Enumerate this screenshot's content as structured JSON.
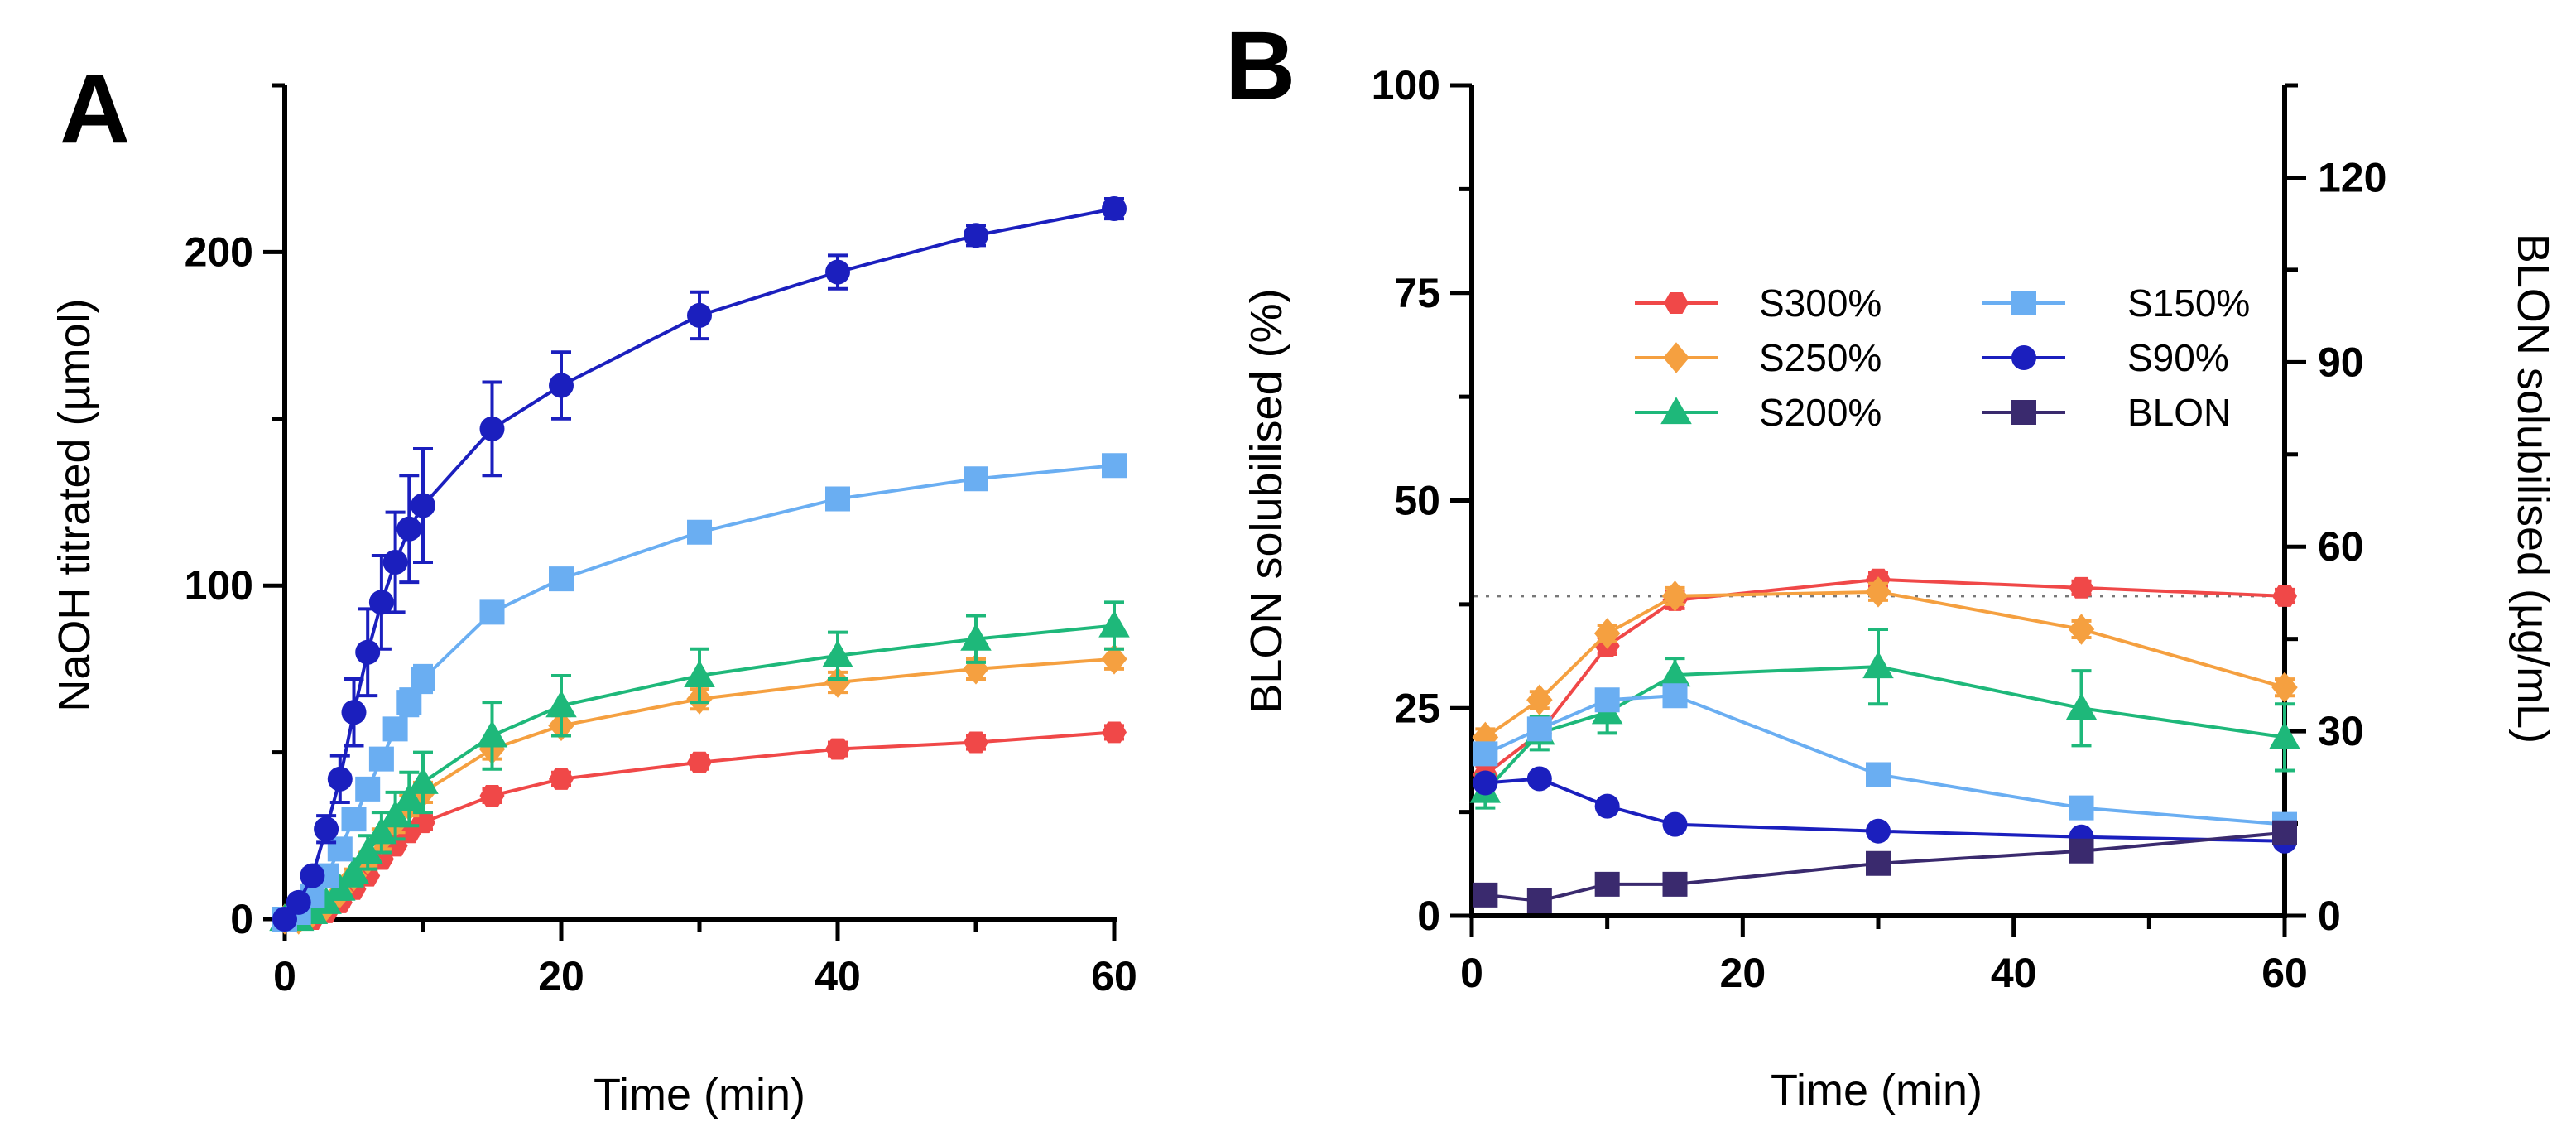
{
  "chart_data": [
    {
      "panel": "A",
      "type": "line",
      "xlabel": "Time (min)",
      "ylabel": "NaOH titrated (µmol)",
      "xlim": [
        0,
        60
      ],
      "ylim": [
        0,
        250
      ],
      "xticks": [
        0,
        20,
        40,
        60
      ],
      "yticks": [
        0,
        100,
        200
      ],
      "series": [
        {
          "name": "S300%",
          "color": "#F04848",
          "marker": "hexagon",
          "x": [
            0,
            1,
            2,
            3,
            4,
            5,
            6,
            7,
            8,
            9,
            10,
            15,
            20,
            30,
            40,
            50,
            60
          ],
          "y": [
            0,
            0,
            0,
            2,
            5,
            9,
            13,
            18,
            22,
            26,
            29,
            37,
            42,
            47,
            51,
            53,
            56
          ],
          "err": [
            0,
            0,
            0,
            1,
            1,
            1,
            1,
            1,
            1,
            1,
            2,
            2,
            2,
            2,
            2,
            2,
            2
          ]
        },
        {
          "name": "S250%",
          "color": "#F5A040",
          "marker": "diamond",
          "x": [
            0,
            1,
            2,
            3,
            4,
            5,
            6,
            7,
            8,
            9,
            10,
            15,
            20,
            30,
            40,
            50,
            60
          ],
          "y": [
            0,
            0,
            2,
            4,
            8,
            13,
            18,
            24,
            29,
            34,
            38,
            51,
            58,
            66,
            71,
            75,
            78
          ],
          "err": [
            0,
            0,
            1,
            1,
            2,
            2,
            2,
            3,
            3,
            3,
            3,
            3,
            3,
            3,
            3,
            3,
            3
          ]
        },
        {
          "name": "S200%",
          "color": "#1EB87A",
          "marker": "triangle",
          "x": [
            0,
            1,
            2,
            3,
            4,
            5,
            6,
            7,
            8,
            9,
            10,
            15,
            20,
            30,
            40,
            50,
            60
          ],
          "y": [
            0,
            0,
            2,
            5,
            9,
            14,
            20,
            26,
            31,
            36,
            41,
            55,
            64,
            73,
            79,
            84,
            88
          ],
          "err": [
            0,
            0,
            1,
            2,
            3,
            4,
            5,
            6,
            7,
            8,
            9,
            10,
            9,
            8,
            7,
            7,
            7
          ]
        },
        {
          "name": "S150%",
          "color": "#6AAEF2",
          "marker": "square",
          "x": [
            0,
            1,
            2,
            3,
            4,
            5,
            6,
            7,
            8,
            9,
            10,
            15,
            20,
            30,
            40,
            50,
            60
          ],
          "y": [
            0,
            2,
            7,
            13,
            21,
            30,
            39,
            48,
            57,
            65,
            72,
            92,
            102,
            116,
            126,
            132,
            136
          ],
          "err": [
            0,
            1,
            1,
            2,
            2,
            3,
            3,
            3,
            3,
            4,
            4,
            3,
            3,
            3,
            3,
            3,
            3
          ]
        },
        {
          "name": "S90%",
          "color": "#1B1FBE",
          "marker": "circle",
          "x": [
            0,
            1,
            2,
            3,
            4,
            5,
            6,
            7,
            8,
            9,
            10,
            15,
            20,
            30,
            40,
            50,
            60
          ],
          "y": [
            0,
            5,
            13,
            27,
            42,
            62,
            80,
            95,
            107,
            117,
            124,
            147,
            160,
            181,
            194,
            205,
            213
          ],
          "err": [
            0,
            1,
            2,
            4,
            7,
            10,
            13,
            14,
            15,
            16,
            17,
            14,
            10,
            7,
            5,
            3,
            3
          ]
        }
      ]
    },
    {
      "panel": "B",
      "type": "line",
      "xlabel": "Time (min)",
      "ylabel": "BLON solubilised (%)",
      "ylabel_right": "BLON solubilised (µg/mL)",
      "xlim": [
        0,
        60
      ],
      "ylim": [
        0,
        100
      ],
      "ylim_right": [
        0,
        135
      ],
      "xticks": [
        0,
        20,
        40,
        60
      ],
      "yticks": [
        0,
        25,
        50,
        75,
        100
      ],
      "yticks_right": [
        0,
        30,
        60,
        90,
        120
      ],
      "reference_line_y": 38.5,
      "legend": {
        "position": "upper-right",
        "columns": 2
      },
      "series": [
        {
          "name": "S300%",
          "color": "#F04848",
          "marker": "hexagon",
          "x": [
            1,
            5,
            10,
            15,
            30,
            45,
            60
          ],
          "y": [
            17,
            22,
            32.5,
            38,
            40.5,
            39.5,
            38.5
          ],
          "err": [
            1,
            1,
            1,
            1,
            0.8,
            0.8,
            0.8
          ]
        },
        {
          "name": "S250%",
          "color": "#F5A040",
          "marker": "diamond",
          "x": [
            1,
            5,
            10,
            15,
            30,
            45,
            60
          ],
          "y": [
            21.5,
            26,
            34,
            38.5,
            39,
            34.5,
            27.5
          ],
          "err": [
            1,
            1,
            1,
            1,
            1,
            1,
            1
          ]
        },
        {
          "name": "S200%",
          "color": "#1EB87A",
          "marker": "triangle",
          "x": [
            1,
            5,
            10,
            15,
            30,
            45,
            60
          ],
          "y": [
            15,
            22,
            24.5,
            29,
            30,
            25,
            21.5
          ],
          "err": [
            2,
            2,
            2.5,
            2,
            4.5,
            4.5,
            4
          ]
        },
        {
          "name": "S150%",
          "color": "#6AAEF2",
          "marker": "square",
          "x": [
            1,
            5,
            10,
            15,
            30,
            45,
            60
          ],
          "y": [
            19.5,
            22.5,
            26,
            26.5,
            17,
            13,
            11
          ],
          "err": [
            1,
            1,
            1,
            1,
            0.8,
            0.8,
            0.8
          ]
        },
        {
          "name": "S90%",
          "color": "#1B1FBE",
          "marker": "circle",
          "x": [
            1,
            5,
            10,
            15,
            30,
            45,
            60
          ],
          "y": [
            16,
            16.5,
            13.2,
            11,
            10.2,
            9.5,
            9
          ],
          "err": [
            0.5,
            0.5,
            0.5,
            0.5,
            0.5,
            0.5,
            0.5
          ]
        },
        {
          "name": "BLON",
          "color": "#3A2A6E",
          "marker": "square",
          "x": [
            1,
            5,
            10,
            15,
            30,
            45,
            60
          ],
          "y": [
            2.5,
            1.8,
            3.8,
            3.8,
            6.3,
            7.8,
            10
          ],
          "err": [
            0.5,
            0.5,
            0.5,
            0.5,
            0.5,
            0.8,
            0.5
          ]
        }
      ]
    }
  ]
}
